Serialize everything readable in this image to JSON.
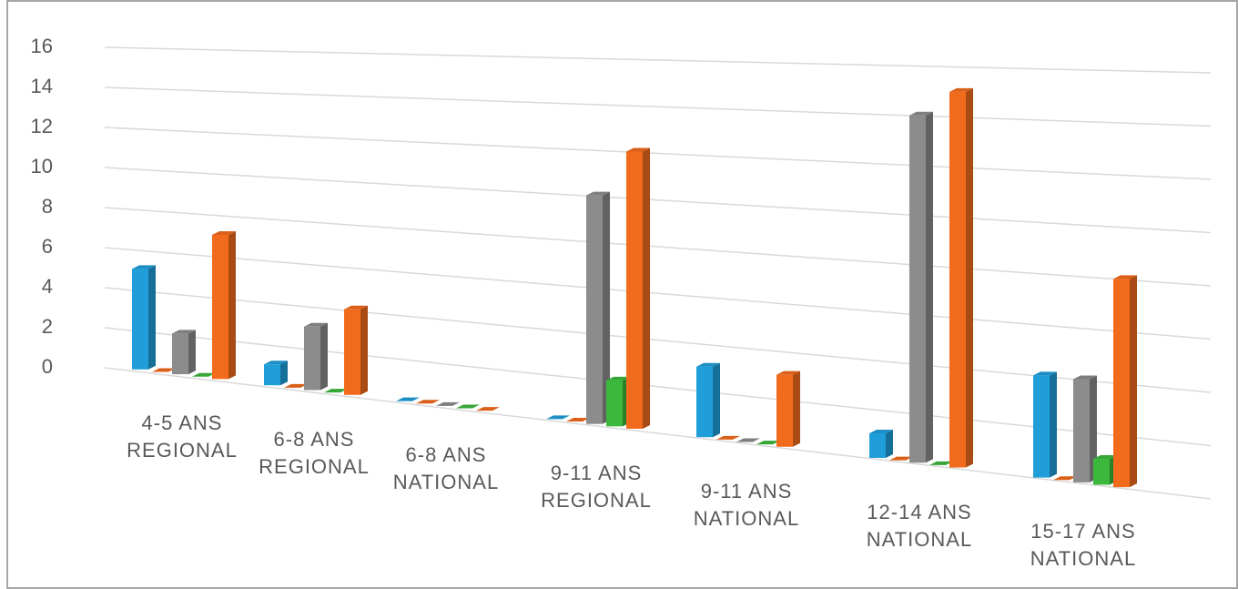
{
  "chart_data": {
    "type": "bar3d",
    "categories": [
      "4-5 ANS REGIONAL",
      "6-8 ANS REGIONAL",
      "6-8 ANS NATIONAL",
      "9-11 ANS REGIONAL",
      "9-11 ANS NATIONAL",
      "12-14 ANS NATIONAL",
      "15-17 ANS NATIONAL"
    ],
    "series": [
      {
        "color": "#1f9ed9",
        "values": [
          5,
          1,
          0,
          0,
          3,
          1,
          4
        ]
      },
      {
        "color": "#f26b1d",
        "values": [
          0,
          0,
          0,
          0,
          0,
          0,
          0
        ]
      },
      {
        "color": "#8c8c8c",
        "values": [
          2,
          3,
          0,
          10,
          0,
          14,
          4
        ]
      },
      {
        "color": "#3cb83c",
        "values": [
          0,
          0,
          0,
          2,
          0,
          0,
          1
        ]
      },
      {
        "color": "#f26b1d",
        "values": [
          7,
          4,
          0,
          12,
          3,
          15,
          8
        ]
      }
    ],
    "ylim": [
      0,
      16
    ],
    "yticks": [
      0,
      2,
      4,
      6,
      8,
      10,
      12,
      14,
      16
    ],
    "grid": true
  }
}
